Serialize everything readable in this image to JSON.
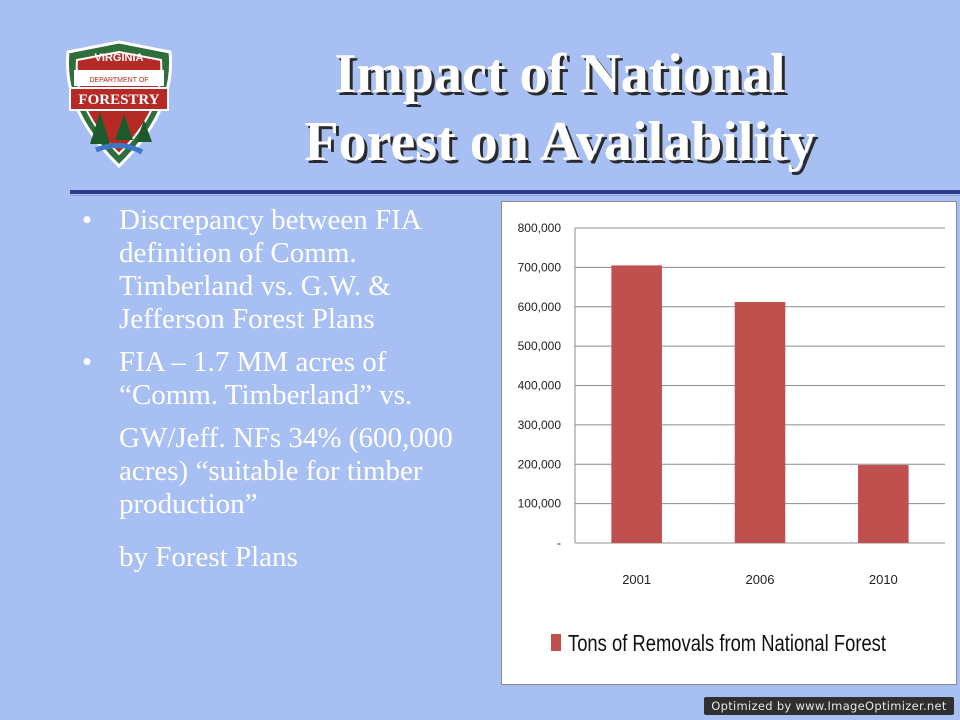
{
  "logo": {
    "top_text": "VIRGINIA",
    "middle_text": "DEPARTMENT OF",
    "main_text": "FORESTRY"
  },
  "title": {
    "line1": "Impact of National",
    "line2": "Forest on Availability"
  },
  "bullets": [
    {
      "marker": "•",
      "text": "Discrepancy between FIA definition of Comm. Timberland vs. G.W. & Jefferson Forest Plans"
    },
    {
      "marker": "•",
      "text": "FIA – 1.7 MM acres of “Comm. Timberland” vs."
    }
  ],
  "continuation": [
    "GW/Jeff. NFs 34% (600,000 acres) “suitable for timber production”",
    "by Forest Plans"
  ],
  "colors": {
    "background": "#a8bff3",
    "bar": "#c0504d",
    "rule": "#2e3e8c"
  },
  "chart_data": {
    "type": "bar",
    "categories": [
      "2001",
      "2006",
      "2010"
    ],
    "series": [
      {
        "name": "Tons of Removals from National Forest",
        "values": [
          705000,
          612000,
          198000
        ]
      }
    ],
    "ylim": [
      0,
      800000
    ],
    "yticks": [
      0,
      100000,
      200000,
      300000,
      400000,
      500000,
      600000,
      700000,
      800000
    ],
    "ytick_labels": [
      "-",
      "100,000",
      "200,000",
      "300,000",
      "400,000",
      "500,000",
      "600,000",
      "700,000",
      "800,000"
    ],
    "grid": true,
    "legend": "bottom"
  },
  "watermark": "Optimized by www.ImageOptimizer.net"
}
